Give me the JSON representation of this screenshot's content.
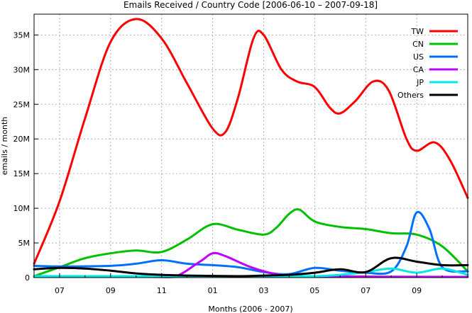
{
  "chart_data": {
    "type": "line",
    "title": "Emails Received / Country Code [2006-06-10 – 2007-09-18]",
    "xlabel": "Months (2006 - 2007)",
    "ylabel": "emails / month",
    "x_tick_labels": [
      "07",
      "09",
      "11",
      "01",
      "03",
      "05",
      "07",
      "09"
    ],
    "y_tick_labels": [
      "0",
      "5M",
      "10M",
      "15M",
      "20M",
      "25M",
      "30M",
      "35M"
    ],
    "ylim": [
      0,
      38000000
    ],
    "grid": true,
    "legend_position": "top-right",
    "series": [
      {
        "name": "TW",
        "color": "#ff0000",
        "points": [
          [
            0,
            2000000
          ],
          [
            1,
            11000000
          ],
          [
            2,
            23000000
          ],
          [
            3,
            34000000
          ],
          [
            4,
            37300000
          ],
          [
            5,
            34500000
          ],
          [
            6,
            28000000
          ],
          [
            7,
            21500000
          ],
          [
            7.5,
            21000000
          ],
          [
            8,
            26000000
          ],
          [
            8.6,
            34500000
          ],
          [
            9,
            35000000
          ],
          [
            9.7,
            30000000
          ],
          [
            10.3,
            28300000
          ],
          [
            11,
            27500000
          ],
          [
            11.6,
            24500000
          ],
          [
            12,
            23700000
          ],
          [
            12.6,
            25500000
          ],
          [
            13.3,
            28300000
          ],
          [
            13.9,
            27000000
          ],
          [
            14.6,
            20000000
          ],
          [
            15,
            18300000
          ],
          [
            15.7,
            19500000
          ],
          [
            16.3,
            17000000
          ],
          [
            17,
            11500000
          ]
        ]
      },
      {
        "name": "CN",
        "color": "#00c000",
        "points": [
          [
            0,
            200000
          ],
          [
            1,
            1500000
          ],
          [
            2,
            2800000
          ],
          [
            3,
            3500000
          ],
          [
            4,
            3900000
          ],
          [
            5,
            3700000
          ],
          [
            6,
            5500000
          ],
          [
            7,
            7700000
          ],
          [
            8,
            6900000
          ],
          [
            9,
            6200000
          ],
          [
            9.5,
            7200000
          ],
          [
            10,
            9200000
          ],
          [
            10.4,
            9800000
          ],
          [
            11,
            8100000
          ],
          [
            12,
            7300000
          ],
          [
            13,
            7000000
          ],
          [
            14,
            6400000
          ],
          [
            15,
            6200000
          ],
          [
            16,
            4500000
          ],
          [
            17,
            900000
          ]
        ]
      },
      {
        "name": "US",
        "color": "#0070ff",
        "points": [
          [
            0,
            1700000
          ],
          [
            1,
            1600000
          ],
          [
            3,
            1700000
          ],
          [
            4,
            2000000
          ],
          [
            5,
            2500000
          ],
          [
            6,
            2000000
          ],
          [
            7,
            1800000
          ],
          [
            8,
            1500000
          ],
          [
            9,
            800000
          ],
          [
            10,
            500000
          ],
          [
            11,
            1400000
          ],
          [
            12,
            1000000
          ],
          [
            13,
            700000
          ],
          [
            14,
            900000
          ],
          [
            14.6,
            4500000
          ],
          [
            15,
            9400000
          ],
          [
            15.5,
            7000000
          ],
          [
            16,
            1500000
          ],
          [
            17,
            900000
          ]
        ]
      },
      {
        "name": "CA",
        "color": "#c000ff",
        "points": [
          [
            0,
            100000
          ],
          [
            4.5,
            100000
          ],
          [
            5.5,
            100000
          ],
          [
            6.5,
            2300000
          ],
          [
            7,
            3500000
          ],
          [
            7.5,
            3100000
          ],
          [
            8.5,
            1500000
          ],
          [
            9.5,
            500000
          ],
          [
            10.5,
            200000
          ],
          [
            17,
            100000
          ]
        ]
      },
      {
        "name": "JP",
        "color": "#00e8e8",
        "points": [
          [
            0,
            200000
          ],
          [
            10,
            200000
          ],
          [
            11,
            200000
          ],
          [
            12,
            400000
          ],
          [
            13,
            800000
          ],
          [
            14,
            1300000
          ],
          [
            15,
            700000
          ],
          [
            16,
            1300000
          ],
          [
            17,
            400000
          ]
        ]
      },
      {
        "name": "Others",
        "color": "#000000",
        "points": [
          [
            0,
            1200000
          ],
          [
            1,
            1400000
          ],
          [
            2,
            1300000
          ],
          [
            3,
            1000000
          ],
          [
            4,
            600000
          ],
          [
            5,
            400000
          ],
          [
            6,
            300000
          ],
          [
            8,
            200000
          ],
          [
            9,
            300000
          ],
          [
            10,
            400000
          ],
          [
            11,
            700000
          ],
          [
            12,
            1200000
          ],
          [
            13,
            800000
          ],
          [
            14,
            2800000
          ],
          [
            15,
            2300000
          ],
          [
            16,
            1800000
          ],
          [
            17,
            1800000
          ]
        ]
      }
    ]
  }
}
